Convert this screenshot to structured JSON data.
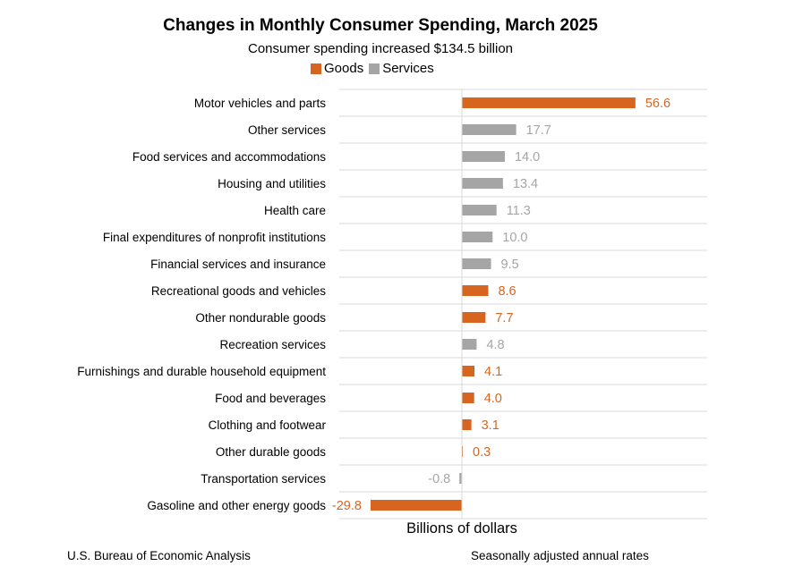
{
  "chart_data": {
    "type": "bar",
    "orientation": "horizontal",
    "title": "Changes in Monthly Consumer Spending, March 2025",
    "subtitle": "Consumer spending increased $134.5 billion",
    "xlabel": "Billions of dollars",
    "xlim": [
      -40,
      80
    ],
    "legend": [
      {
        "name": "Goods",
        "color": "#d8651f"
      },
      {
        "name": "Services",
        "color": "#a5a5a5"
      }
    ],
    "categories": [
      "Motor vehicles and parts",
      "Other services",
      "Food services and accommodations",
      "Housing and utilities",
      "Health care",
      "Final expenditures of nonprofit institutions",
      "Financial services and insurance",
      "Recreational goods and vehicles",
      "Other nondurable goods",
      "Recreation services",
      "Furnishings and durable household equipment",
      "Food and beverages",
      "Clothing and footwear",
      "Other durable goods",
      "Transportation services",
      "Gasoline and other energy goods"
    ],
    "values": [
      56.6,
      17.7,
      14.0,
      13.4,
      11.3,
      10.0,
      9.5,
      8.6,
      7.7,
      4.8,
      4.1,
      4.0,
      3.1,
      0.3,
      -0.8,
      -29.8
    ],
    "value_labels": [
      "56.6",
      "17.7",
      "14.0",
      "13.4",
      "11.3",
      "10.0",
      "9.5",
      "8.6",
      "7.7",
      "4.8",
      "4.1",
      "4.0",
      "3.1",
      "0.3",
      "-0.8",
      "-29.8"
    ],
    "groups": [
      "Goods",
      "Services",
      "Services",
      "Services",
      "Services",
      "Services",
      "Services",
      "Goods",
      "Goods",
      "Services",
      "Goods",
      "Goods",
      "Goods",
      "Goods",
      "Services",
      "Goods"
    ]
  },
  "footer": {
    "source": "U.S. Bureau of Economic Analysis",
    "note": "Seasonally adjusted annual rates"
  }
}
